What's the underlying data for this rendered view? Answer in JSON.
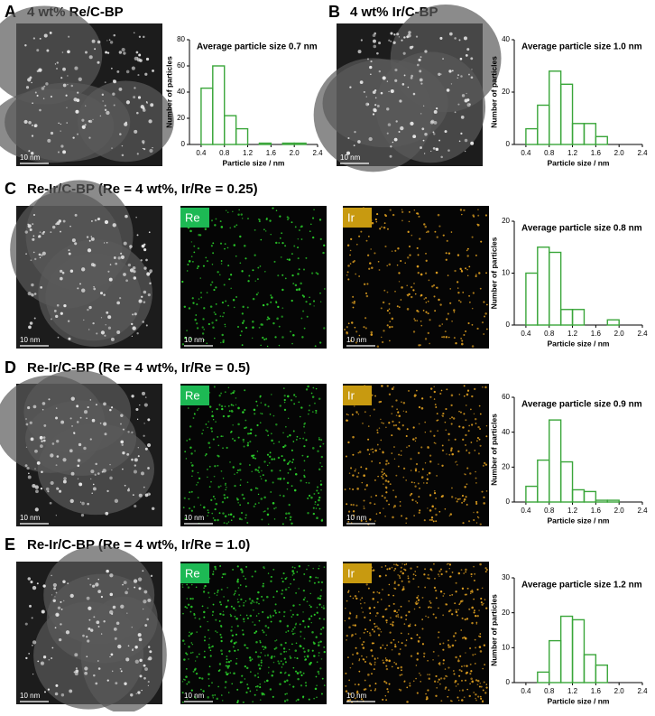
{
  "panels": [
    {
      "label": "A",
      "title": "4 wt% Re/C-BP"
    },
    {
      "label": "B",
      "title": "4 wt% Ir/C-BP"
    },
    {
      "label": "C",
      "title": "Re-Ir/C-BP (Re = 4 wt%, Ir/Re = 0.25)"
    },
    {
      "label": "D",
      "title": "Re-Ir/C-BP (Re = 4 wt%, Ir/Re = 0.5)"
    },
    {
      "label": "E",
      "title": "Re-Ir/C-BP (Re = 4 wt%, Ir/Re = 1.0)"
    }
  ],
  "scale_bar": "10 nm",
  "map_labels": [
    "Re",
    "Ir"
  ],
  "chart_data": [
    {
      "type": "histogram",
      "title": "Average particle size 0.7 nm",
      "xlabel": "Particle size / nm",
      "ylabel": "Number of particles",
      "color": "#3aa63a",
      "bins": [
        0.4,
        0.6,
        0.8,
        1.0,
        1.2,
        1.4,
        1.6,
        1.8,
        2.0,
        2.2
      ],
      "values": [
        43,
        60,
        22,
        12,
        0,
        1,
        0,
        1,
        1
      ],
      "xlim": [
        0.2,
        2.4
      ],
      "xticks": [
        0.4,
        0.8,
        1.2,
        1.6,
        {
          "value": 2,
          "label": "2.0"
        },
        2.4
      ],
      "ylim": [
        0,
        80
      ],
      "yticks": [
        0,
        20,
        40,
        60,
        80
      ]
    },
    {
      "type": "histogram",
      "title": "Average particle size 1.0 nm",
      "xlabel": "Particle size / nm",
      "ylabel": "Number of particles",
      "color": "#3aa63a",
      "bins": [
        0.4,
        0.6,
        0.8,
        1.0,
        1.2,
        1.4,
        1.6,
        1.8
      ],
      "values": [
        6,
        15,
        28,
        23,
        8,
        8,
        3
      ],
      "xlim": [
        0.2,
        2.4
      ],
      "xticks": [
        0.4,
        0.8,
        1.2,
        1.6,
        {
          "value": 2,
          "label": "2.0"
        },
        2.4
      ],
      "ylim": [
        0,
        40
      ],
      "yticks": [
        0,
        20,
        40
      ]
    },
    {
      "type": "histogram",
      "title": "Average particle size 0.8 nm",
      "xlabel": "Particle size / nm",
      "ylabel": "Number of particles",
      "color": "#3aa63a",
      "bins": [
        0.4,
        0.6,
        0.8,
        1.0,
        1.2,
        1.4,
        1.6,
        1.8,
        2.0
      ],
      "values": [
        10,
        15,
        14,
        3,
        3,
        0,
        0,
        1
      ],
      "xlim": [
        0.2,
        2.4
      ],
      "xticks": [
        0.4,
        0.8,
        1.2,
        1.6,
        {
          "value": 2,
          "label": "2.0"
        },
        2.4
      ],
      "ylim": [
        0,
        20
      ],
      "yticks": [
        0,
        10,
        20
      ]
    },
    {
      "type": "histogram",
      "title": "Average particle size 0.9 nm",
      "xlabel": "Particle size / nm",
      "ylabel": "Number of particles",
      "color": "#3aa63a",
      "bins": [
        0.4,
        0.6,
        0.8,
        1.0,
        1.2,
        1.4,
        1.6,
        1.8,
        2.0
      ],
      "values": [
        9,
        24,
        47,
        23,
        7,
        6,
        1,
        1
      ],
      "xlim": [
        0.2,
        2.4
      ],
      "xticks": [
        0.4,
        0.8,
        1.2,
        1.6,
        {
          "value": 2,
          "label": "2.0"
        },
        2.4
      ],
      "ylim": [
        0,
        60
      ],
      "yticks": [
        0,
        20,
        40,
        60
      ]
    },
    {
      "type": "histogram",
      "title": "Average particle size 1.2 nm",
      "xlabel": "Particle size / nm",
      "ylabel": "Number of particles",
      "color": "#3aa63a",
      "bins": [
        0.6,
        0.8,
        1.0,
        1.2,
        1.4,
        1.6,
        1.8
      ],
      "values": [
        3,
        12,
        19,
        18,
        8,
        5
      ],
      "xlim": [
        0.2,
        2.4
      ],
      "xticks": [
        0.4,
        0.8,
        1.2,
        1.6,
        {
          "value": 2,
          "label": "2.0"
        },
        2.4
      ],
      "ylim": [
        0,
        30
      ],
      "yticks": [
        0,
        10,
        20,
        30
      ]
    }
  ]
}
